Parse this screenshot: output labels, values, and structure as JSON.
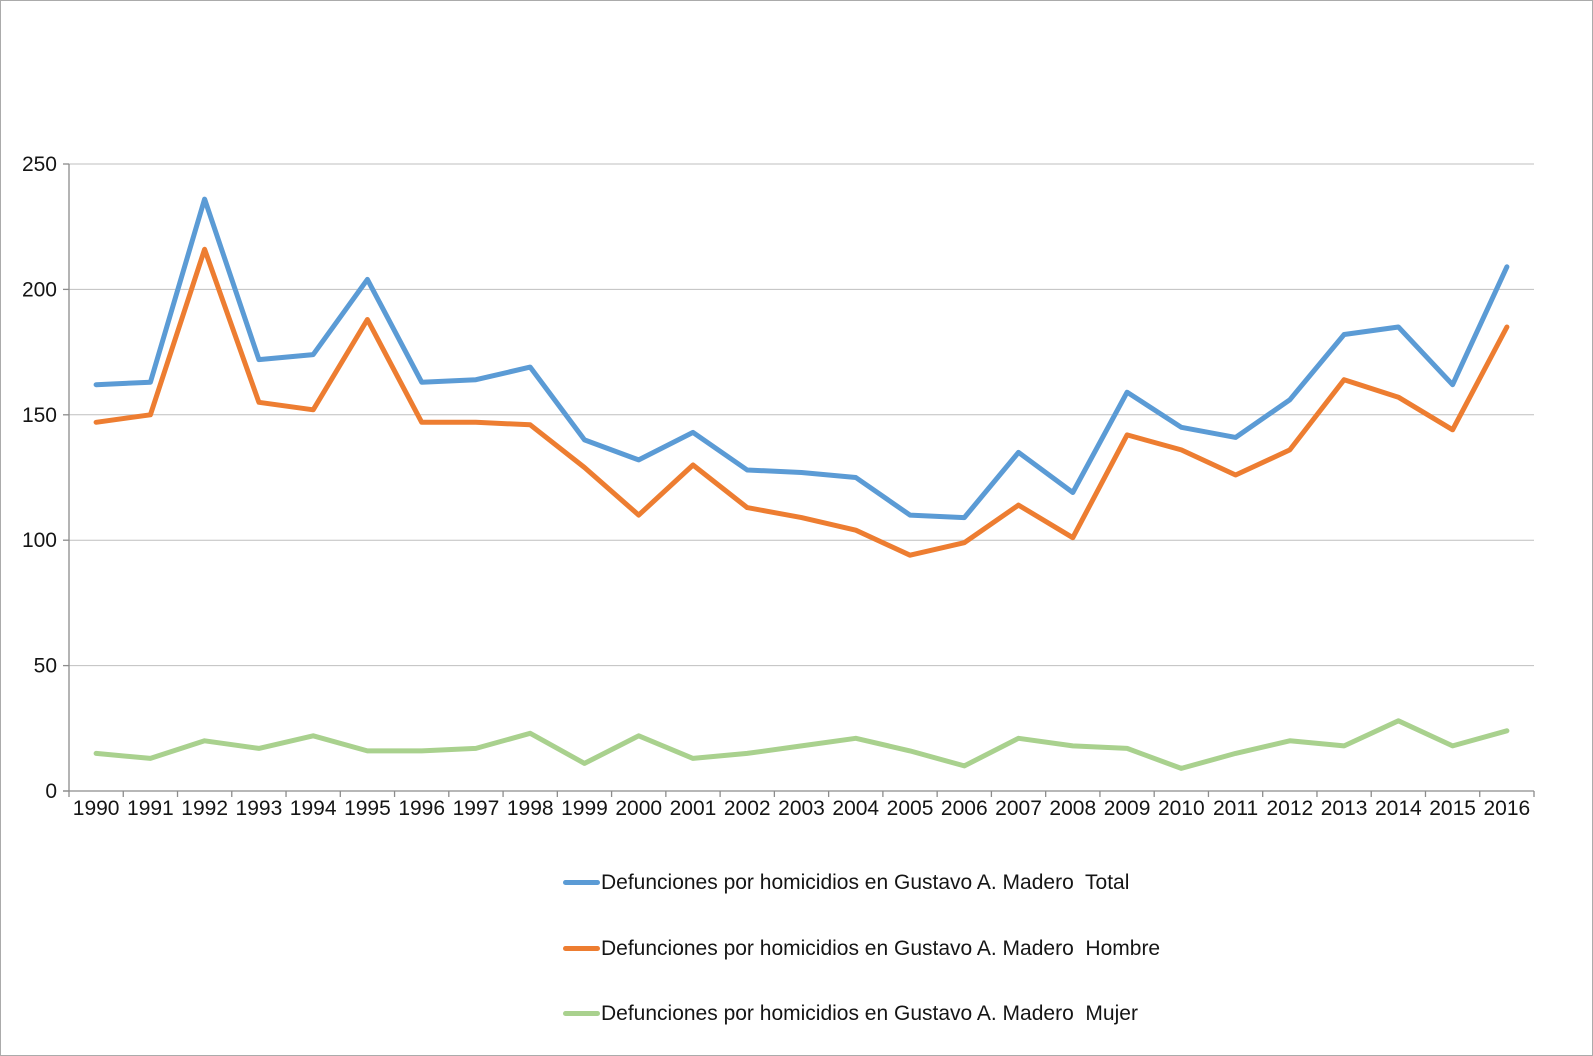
{
  "chart_data": {
    "type": "line",
    "title": "",
    "categories": [
      "1990",
      "1991",
      "1992",
      "1993",
      "1994",
      "1995",
      "1996",
      "1997",
      "1998",
      "1999",
      "2000",
      "2001",
      "2002",
      "2003",
      "2004",
      "2005",
      "2006",
      "2007",
      "2008",
      "2009",
      "2010",
      "2011",
      "2012",
      "2013",
      "2014",
      "2015",
      "2016"
    ],
    "series": [
      {
        "name": "Defunciones por homicidios en Gustavo A. Madero  Total",
        "color": "#5B9BD5",
        "values": [
          162,
          163,
          236,
          172,
          174,
          204,
          163,
          164,
          169,
          140,
          132,
          143,
          128,
          127,
          125,
          110,
          109,
          135,
          119,
          159,
          145,
          141,
          156,
          182,
          185,
          162,
          209
        ]
      },
      {
        "name": "Defunciones por homicidios en Gustavo A. Madero  Hombre",
        "color": "#ED7D31",
        "values": [
          147,
          150,
          216,
          155,
          152,
          188,
          147,
          147,
          146,
          129,
          110,
          130,
          113,
          109,
          104,
          94,
          99,
          114,
          101,
          142,
          136,
          126,
          136,
          164,
          157,
          144,
          185
        ]
      },
      {
        "name": "Defunciones por homicidios en Gustavo A. Madero  Mujer",
        "color": "#A9D18E",
        "values": [
          15,
          13,
          20,
          17,
          22,
          16,
          16,
          17,
          23,
          11,
          22,
          13,
          15,
          18,
          21,
          16,
          10,
          21,
          18,
          17,
          9,
          15,
          20,
          18,
          28,
          18,
          24
        ]
      }
    ],
    "y_axis": {
      "min": 0,
      "max": 250,
      "step": 50,
      "tick_labels": [
        "0",
        "50",
        "100",
        "150",
        "200",
        "250"
      ]
    },
    "x_axis": {
      "tick_labels": [
        "1990",
        "1991",
        "1992",
        "1993",
        "1994",
        "1995",
        "1996",
        "1997",
        "1998",
        "1999",
        "2000",
        "2001",
        "2002",
        "2003",
        "2004",
        "2005",
        "2006",
        "2007",
        "2008",
        "2009",
        "2010",
        "2011",
        "2012",
        "2013",
        "2014",
        "2015",
        "2016"
      ]
    },
    "grid": true,
    "legend_position": "bottom-left-stacked",
    "colors": {
      "axis_line": "#8c8c8c",
      "gridline": "#bfbfbf",
      "tick_text": "#151515",
      "background": "#ffffff",
      "frame_border": "#ababab"
    }
  }
}
